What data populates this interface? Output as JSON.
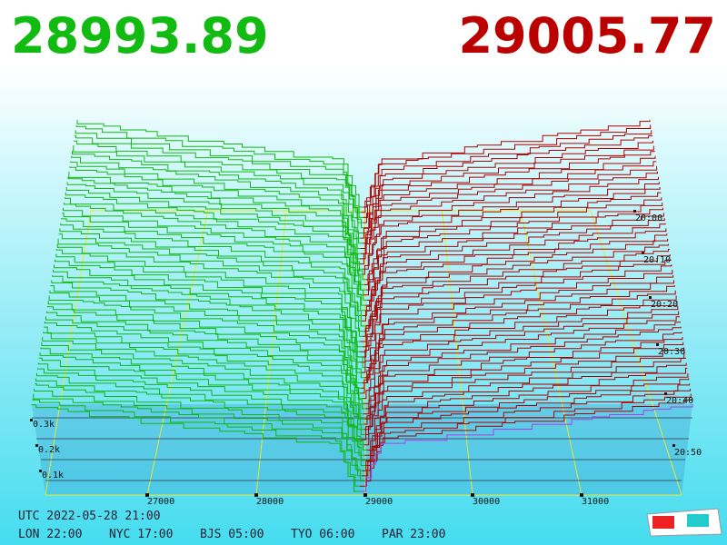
{
  "header": {
    "bid": "28993.89",
    "ask": "29005.77"
  },
  "price_axis": [
    "27000",
    "28000",
    "29000",
    "30000",
    "31000"
  ],
  "volume_axis": [
    "0.3k",
    "0.2k",
    "0.1k"
  ],
  "time_axis": [
    "20:00",
    "20:10",
    "20:20",
    "20:30",
    "20:40",
    "20:50"
  ],
  "footer": {
    "utc": "UTC 2022-05-28 21:00",
    "clocks": [
      "LON 22:00",
      "NYC 17:00",
      "BJS 05:00",
      "TYO 06:00",
      "PAR 23:00"
    ]
  }
}
